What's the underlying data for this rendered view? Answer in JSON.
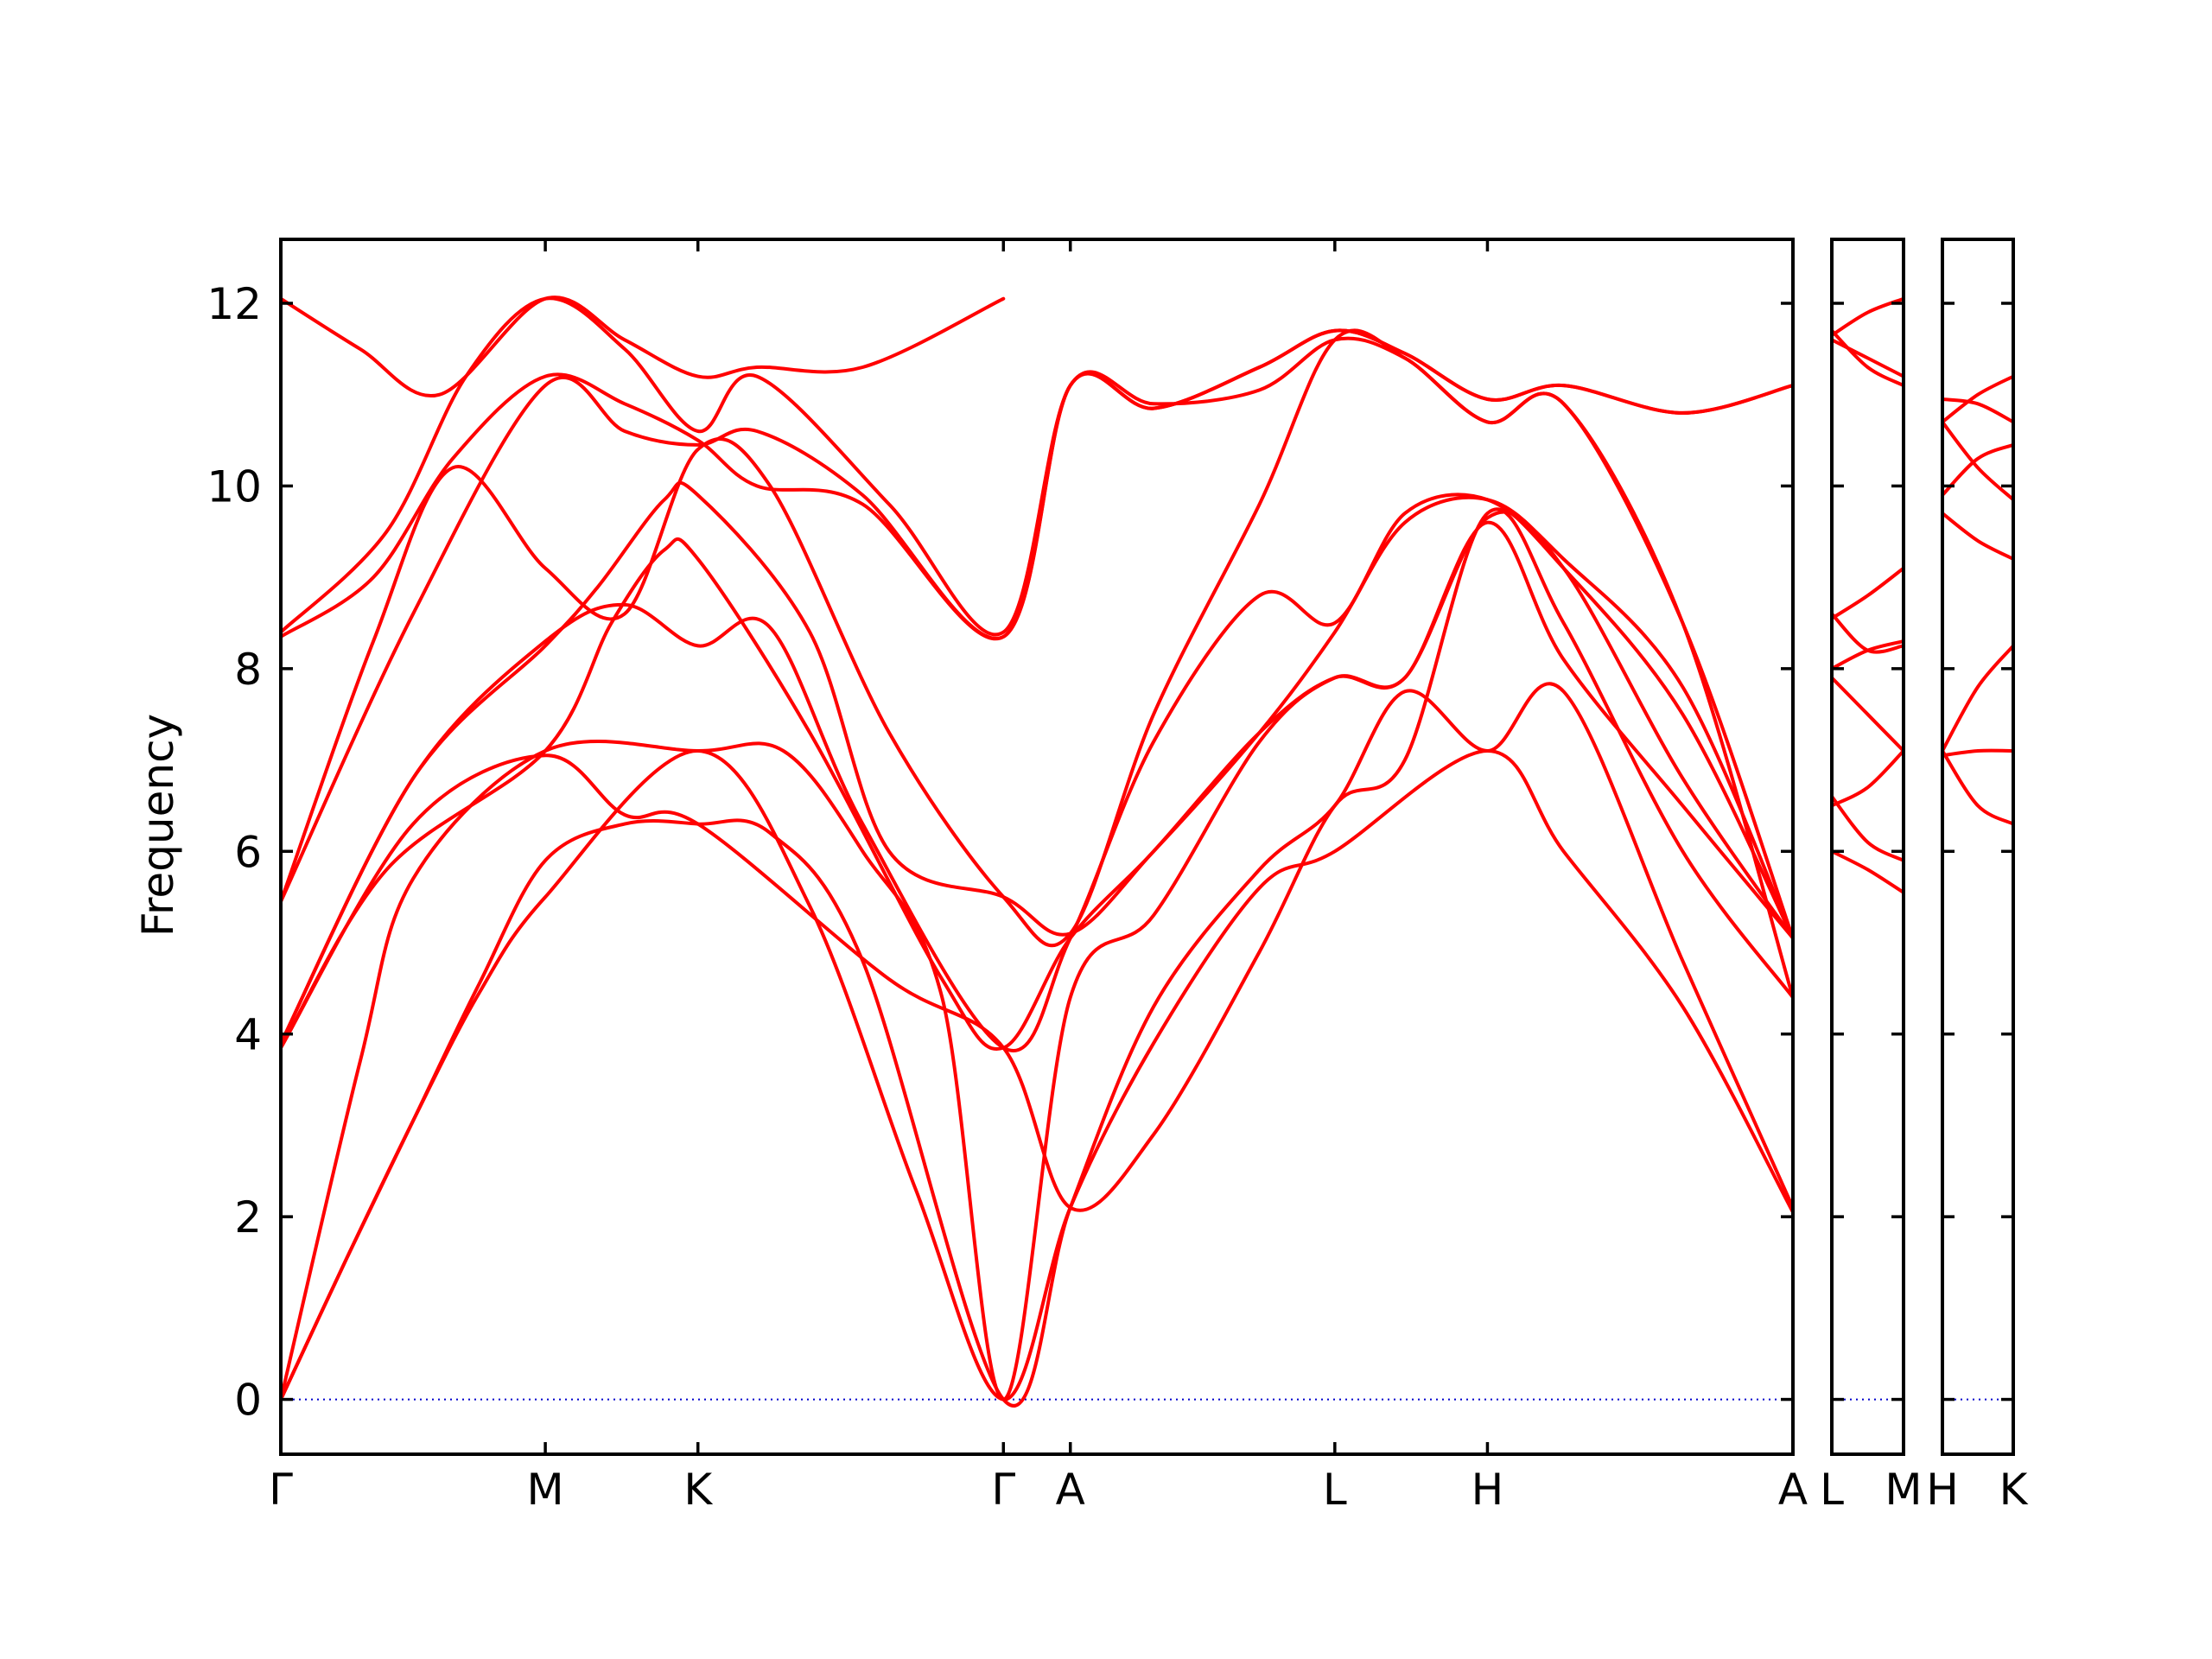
{
  "chart_data": {
    "type": "line",
    "ylabel": "Frequency",
    "ylim": [
      -0.6,
      12.7
    ],
    "yticks": [
      0,
      2,
      4,
      6,
      8,
      10,
      12
    ],
    "colors": {
      "bands": "#ff0000",
      "zero_line": "#0000cc",
      "frame": "#000000"
    },
    "grid": false,
    "panels": [
      {
        "id": "main",
        "xticks": [
          {
            "x": 0,
            "label": "Γ"
          },
          {
            "x": 1.0,
            "label": "M"
          },
          {
            "x": 1.577,
            "label": "K"
          },
          {
            "x": 2.732,
            "label": "Γ"
          },
          {
            "x": 2.985,
            "label": "A"
          },
          {
            "x": 3.985,
            "label": "L"
          },
          {
            "x": 4.562,
            "label": "H"
          },
          {
            "x": 5.717,
            "label": "A"
          }
        ],
        "bands": [
          [
            [
              0,
              0
            ],
            [
              0.25,
              1.55
            ],
            [
              0.5,
              3.05
            ],
            [
              0.75,
              4.45
            ],
            [
              1.0,
              5.5
            ],
            [
              1.577,
              7.1
            ],
            [
              2.0,
              5.4
            ],
            [
              2.4,
              2.3
            ],
            [
              2.732,
              0
            ],
            [
              2.985,
              2.1
            ],
            [
              3.3,
              3.9
            ],
            [
              3.7,
              5.6
            ],
            [
              3.985,
              6.0
            ],
            [
              4.562,
              7.1
            ],
            [
              4.85,
              6.0
            ],
            [
              5.3,
              4.3
            ],
            [
              5.717,
              2.05
            ]
          ],
          [
            [
              0,
              0
            ],
            [
              0.25,
              1.55
            ],
            [
              0.5,
              3.05
            ],
            [
              0.75,
              4.55
            ],
            [
              1.0,
              5.9
            ],
            [
              1.3,
              6.3
            ],
            [
              1.577,
              6.3
            ],
            [
              1.85,
              6.2
            ],
            [
              2.2,
              4.8
            ],
            [
              2.732,
              0
            ],
            [
              2.985,
              2.1
            ],
            [
              3.3,
              4.3
            ],
            [
              3.7,
              5.8
            ],
            [
              3.985,
              6.5
            ],
            [
              4.25,
              7.75
            ],
            [
              4.562,
              7.1
            ],
            [
              4.85,
              7.75
            ],
            [
              5.3,
              4.8
            ],
            [
              5.717,
              2.1
            ]
          ],
          [
            [
              0,
              0
            ],
            [
              0.3,
              3.7
            ],
            [
              0.5,
              5.7
            ],
            [
              1.0,
              7.1
            ],
            [
              1.577,
              7.1
            ],
            [
              1.9,
              7.1
            ],
            [
              2.2,
              6.0
            ],
            [
              2.5,
              4.4
            ],
            [
              2.732,
              0
            ],
            [
              2.985,
              4.4
            ],
            [
              3.3,
              5.3
            ],
            [
              3.7,
              7.2
            ],
            [
              3.985,
              7.9
            ],
            [
              4.25,
              7.9
            ],
            [
              4.562,
              9.6
            ],
            [
              4.85,
              8.1
            ],
            [
              5.3,
              6.5
            ],
            [
              5.717,
              5.05
            ]
          ],
          [
            [
              0,
              3.85
            ],
            [
              0.5,
              6.3
            ],
            [
              1.0,
              7.05
            ],
            [
              1.3,
              6.4
            ],
            [
              1.577,
              6.3
            ],
            [
              2.3,
              4.6
            ],
            [
              2.732,
              3.85
            ],
            [
              2.985,
              2.1
            ],
            [
              3.3,
              2.9
            ],
            [
              3.7,
              4.9
            ],
            [
              3.985,
              6.5
            ],
            [
              4.25,
              7.0
            ],
            [
              4.562,
              9.7
            ],
            [
              4.85,
              8.5
            ],
            [
              5.3,
              6.0
            ],
            [
              5.717,
              4.4
            ]
          ],
          [
            [
              0,
              3.85
            ],
            [
              0.4,
              5.8
            ],
            [
              1.0,
              7.1
            ],
            [
              1.25,
              8.5
            ],
            [
              1.45,
              9.3
            ],
            [
              1.577,
              9.2
            ],
            [
              2.0,
              7.3
            ],
            [
              2.5,
              4.6
            ],
            [
              2.732,
              3.85
            ],
            [
              2.985,
              5.05
            ],
            [
              3.3,
              6.0
            ],
            [
              3.7,
              7.3
            ],
            [
              3.985,
              7.9
            ],
            [
              4.25,
              7.9
            ],
            [
              4.562,
              9.65
            ],
            [
              4.85,
              9.1
            ],
            [
              5.3,
              6.8
            ],
            [
              5.717,
              5.05
            ]
          ],
          [
            [
              0,
              3.9
            ],
            [
              0.5,
              6.8
            ],
            [
              1.0,
              8.3
            ],
            [
              1.3,
              8.7
            ],
            [
              1.577,
              8.25
            ],
            [
              1.85,
              8.45
            ],
            [
              2.2,
              6.3
            ],
            [
              2.732,
              3.85
            ],
            [
              2.985,
              5.05
            ],
            [
              3.3,
              7.2
            ],
            [
              3.7,
              8.8
            ],
            [
              3.985,
              8.5
            ],
            [
              4.25,
              9.7
            ],
            [
              4.562,
              9.85
            ],
            [
              4.85,
              9.1
            ],
            [
              5.3,
              7.5
            ],
            [
              5.717,
              5.05
            ]
          ],
          [
            [
              0,
              3.9
            ],
            [
              0.5,
              6.8
            ],
            [
              1.0,
              8.25
            ],
            [
              1.2,
              8.9
            ],
            [
              1.45,
              9.85
            ],
            [
              1.577,
              9.9
            ],
            [
              2.0,
              8.4
            ],
            [
              2.3,
              6.0
            ],
            [
              2.732,
              5.5
            ],
            [
              2.985,
              5.1
            ],
            [
              3.3,
              6.0
            ],
            [
              3.7,
              7.3
            ],
            [
              3.985,
              8.4
            ],
            [
              4.25,
              9.6
            ],
            [
              4.562,
              9.85
            ],
            [
              4.85,
              9.2
            ],
            [
              5.3,
              7.8
            ],
            [
              5.717,
              5.05
            ]
          ],
          [
            [
              0,
              5.45
            ],
            [
              0.35,
              8.3
            ],
            [
              0.65,
              10.2
            ],
            [
              1.0,
              9.1
            ],
            [
              1.3,
              8.6
            ],
            [
              1.577,
              10.4
            ],
            [
              1.85,
              10.0
            ],
            [
              2.3,
              7.3
            ],
            [
              2.732,
              5.5
            ],
            [
              2.985,
              5.1
            ],
            [
              3.3,
              7.5
            ],
            [
              3.7,
              9.8
            ],
            [
              3.985,
              11.6
            ],
            [
              4.25,
              11.4
            ],
            [
              4.562,
              10.7
            ],
            [
              4.85,
              10.9
            ],
            [
              5.3,
              8.5
            ],
            [
              5.717,
              4.4
            ]
          ],
          [
            [
              0,
              5.45
            ],
            [
              0.5,
              8.6
            ],
            [
              1.0,
              11.1
            ],
            [
              1.3,
              10.6
            ],
            [
              1.577,
              10.45
            ],
            [
              1.8,
              10.6
            ],
            [
              2.2,
              9.9
            ],
            [
              2.732,
              8.35
            ],
            [
              2.985,
              11.1
            ],
            [
              3.3,
              10.9
            ],
            [
              3.7,
              11.05
            ],
            [
              3.985,
              11.6
            ],
            [
              4.25,
              11.4
            ],
            [
              4.562,
              10.7
            ],
            [
              4.85,
              10.9
            ],
            [
              5.3,
              8.5
            ],
            [
              5.717,
              5.05
            ]
          ],
          [
            [
              0,
              8.35
            ],
            [
              0.35,
              9.0
            ],
            [
              0.65,
              10.3
            ],
            [
              1.0,
              11.2
            ],
            [
              1.3,
              10.9
            ],
            [
              1.577,
              10.5
            ],
            [
              1.8,
              10.0
            ],
            [
              2.2,
              9.8
            ],
            [
              2.732,
              8.35
            ],
            [
              2.985,
              11.1
            ],
            [
              3.3,
              10.85
            ],
            [
              3.7,
              11.3
            ],
            [
              3.985,
              11.7
            ],
            [
              4.25,
              11.45
            ],
            [
              4.562,
              10.95
            ],
            [
              4.85,
              11.1
            ],
            [
              5.3,
              10.8
            ],
            [
              5.717,
              11.1
            ]
          ],
          [
            [
              0,
              8.4
            ],
            [
              0.4,
              9.5
            ],
            [
              0.7,
              11.2
            ],
            [
              1.0,
              12.05
            ],
            [
              1.3,
              11.5
            ],
            [
              1.577,
              10.6
            ],
            [
              1.8,
              11.2
            ],
            [
              2.3,
              9.8
            ],
            [
              2.732,
              8.4
            ],
            [
              2.985,
              11.1
            ],
            [
              3.3,
              10.85
            ],
            [
              3.7,
              11.3
            ],
            [
              3.985,
              11.7
            ],
            [
              4.25,
              11.45
            ],
            [
              4.562,
              10.95
            ],
            [
              4.85,
              11.1
            ],
            [
              5.3,
              10.8
            ],
            [
              5.717,
              11.1
            ]
          ],
          [
            [
              0,
              12.05
            ],
            [
              0.3,
              11.5
            ],
            [
              0.6,
              11.0
            ],
            [
              1.0,
              12.05
            ],
            [
              1.3,
              11.6
            ],
            [
              1.577,
              11.2
            ],
            [
              1.8,
              11.3
            ],
            [
              2.2,
              11.3
            ],
            [
              2.732,
              12.05
            ]
          ]
        ]
      },
      {
        "id": "L-M",
        "xticks": [
          {
            "x": 0,
            "label": "L"
          },
          {
            "x": 1,
            "label": "M"
          }
        ],
        "bands": [
          [
            [
              0,
              6.0
            ],
            [
              0.5,
              5.8
            ],
            [
              1,
              5.55
            ]
          ],
          [
            [
              0,
              6.6
            ],
            [
              0.5,
              6.1
            ],
            [
              1,
              5.9
            ]
          ],
          [
            [
              0,
              6.5
            ],
            [
              0.5,
              6.7
            ],
            [
              1,
              7.1
            ]
          ],
          [
            [
              0,
              7.9
            ],
            [
              0.5,
              7.5
            ],
            [
              1,
              7.1
            ]
          ],
          [
            [
              0,
              8.0
            ],
            [
              0.5,
              8.2
            ],
            [
              1,
              8.3
            ]
          ],
          [
            [
              0,
              8.6
            ],
            [
              0.5,
              8.2
            ],
            [
              1,
              8.25
            ]
          ],
          [
            [
              0,
              8.55
            ],
            [
              0.5,
              8.8
            ],
            [
              1,
              9.1
            ]
          ],
          [
            [
              0,
              11.7
            ],
            [
              0.5,
              11.3
            ],
            [
              1,
              11.1
            ]
          ],
          [
            [
              0,
              11.6
            ],
            [
              0.5,
              11.4
            ],
            [
              1,
              11.2
            ]
          ],
          [
            [
              0,
              11.65
            ],
            [
              0.5,
              11.9
            ],
            [
              1,
              12.05
            ]
          ]
        ]
      },
      {
        "id": "H-K",
        "xticks": [
          {
            "x": 0,
            "label": "H"
          },
          {
            "x": 1,
            "label": "K"
          }
        ],
        "bands": [
          [
            [
              0,
              7.1
            ],
            [
              0.5,
              6.5
            ],
            [
              1,
              6.3
            ]
          ],
          [
            [
              0,
              7.05
            ],
            [
              0.5,
              7.1
            ],
            [
              1,
              7.1
            ]
          ],
          [
            [
              0,
              7.1
            ],
            [
              0.5,
              7.8
            ],
            [
              1,
              8.25
            ]
          ],
          [
            [
              0,
              9.7
            ],
            [
              0.5,
              9.4
            ],
            [
              1,
              9.2
            ]
          ],
          [
            [
              0,
              9.9
            ],
            [
              0.5,
              10.3
            ],
            [
              1,
              10.45
            ]
          ],
          [
            [
              0,
              10.7
            ],
            [
              0.5,
              10.2
            ],
            [
              1,
              9.85
            ]
          ],
          [
            [
              0,
              10.95
            ],
            [
              0.5,
              10.9
            ],
            [
              1,
              10.7
            ]
          ],
          [
            [
              0,
              10.7
            ],
            [
              0.5,
              11.0
            ],
            [
              1,
              11.2
            ]
          ]
        ]
      }
    ]
  }
}
